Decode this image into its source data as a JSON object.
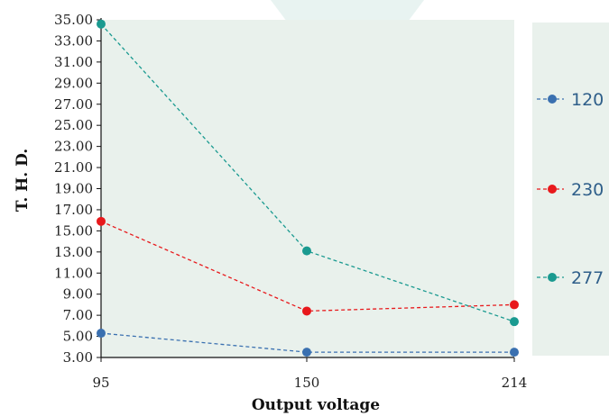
{
  "chart_data": {
    "type": "line",
    "xlabel": "Output voltage",
    "ylabel": "T. H. D.",
    "categories": [
      "95",
      "150",
      "214"
    ],
    "ylim": [
      3.0,
      35.0
    ],
    "yticks": [
      "3.00",
      "5.00",
      "7.00",
      "9.00",
      "11.00",
      "13.00",
      "15.00",
      "17.00",
      "19.00",
      "21.00",
      "23.00",
      "25.00",
      "27.00",
      "29.00",
      "31.00",
      "33.00",
      "35.00"
    ],
    "grid": false,
    "legend_position": "right",
    "series": [
      {
        "name": "120",
        "color": "#3a70b0",
        "values": [
          5.3,
          3.5,
          3.5
        ]
      },
      {
        "name": "230",
        "color": "#e8191c",
        "values": [
          15.9,
          7.4,
          8.0
        ]
      },
      {
        "name": "277",
        "color": "#1a9a90",
        "values": [
          34.6,
          13.1,
          6.4
        ]
      }
    ],
    "colors": {
      "plot_background": "#e9f1ec",
      "axis": "#111111"
    }
  }
}
